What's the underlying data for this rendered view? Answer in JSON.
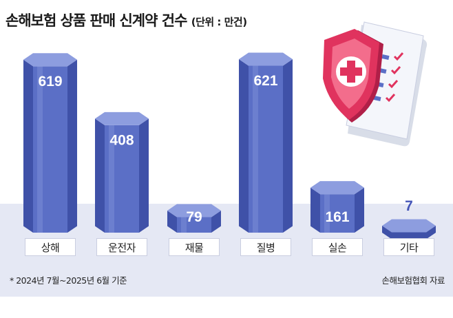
{
  "header": {
    "title": "손해보험 상품 판매 신계약 건수",
    "unit": "(단위 : 만건)"
  },
  "footer": {
    "note": "* 2024년 7월~2025년 6월 기준",
    "source": "손해보험협회 자료"
  },
  "colors": {
    "bar_front": "#5b6fc6",
    "bar_side": "#3f51a8",
    "bar_top": "#8d9ddf",
    "band": "#e5e8f4",
    "shield": "#e0335e",
    "value_small": "#4455b8"
  },
  "illustration": {
    "icon": "insurance-shield-checklist-icon"
  },
  "chart_data": {
    "type": "bar",
    "title": "손해보험 상품 판매 신계약 건수",
    "unit": "만건",
    "categories": [
      "상해",
      "운전자",
      "재물",
      "질병",
      "실손",
      "기타"
    ],
    "values": [
      619,
      408,
      79,
      621,
      161,
      7
    ],
    "value_labels": [
      "619",
      "408",
      "79",
      "621",
      "161",
      "7"
    ],
    "style": "hexagonal-prism"
  }
}
